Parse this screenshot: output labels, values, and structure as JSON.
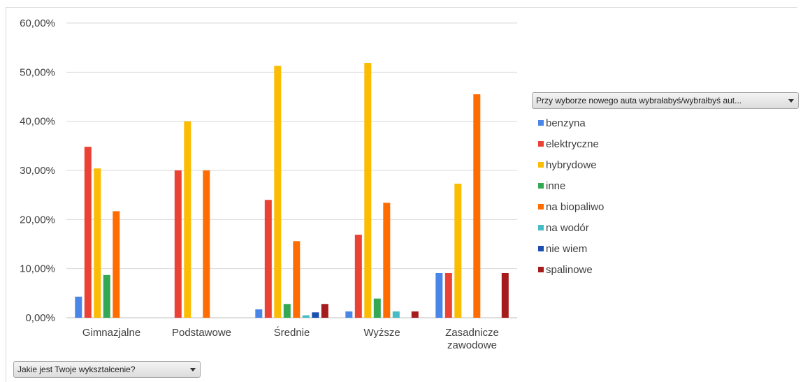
{
  "chart_data": {
    "type": "bar",
    "categories": [
      "Gimnazjalne",
      "Podstawowe",
      "Średnie",
      "Wyższe",
      "Zasadnicze zawodowe"
    ],
    "category_lines": [
      [
        "Gimnazjalne"
      ],
      [
        "Podstawowe"
      ],
      [
        "Średnie"
      ],
      [
        "Wyższe"
      ],
      [
        "Zasadnicze",
        "zawodowe"
      ]
    ],
    "ylim": [
      0,
      60
    ],
    "yticks": [
      0,
      10,
      20,
      30,
      40,
      50,
      60
    ],
    "ytick_labels": [
      "0,00%",
      "10,00%",
      "20,00%",
      "30,00%",
      "40,00%",
      "50,00%",
      "60,00%"
    ],
    "grid": true,
    "legend_position": "right",
    "series": [
      {
        "name": "benzyna",
        "color": "#4a86e8",
        "values": [
          4.3,
          0,
          1.7,
          1.3,
          9.1
        ]
      },
      {
        "name": "elektryczne",
        "color": "#ea4335",
        "values": [
          34.8,
          30.0,
          24.0,
          16.9,
          9.1
        ]
      },
      {
        "name": "hybrydowe",
        "color": "#fbbc04",
        "values": [
          30.4,
          40.0,
          51.3,
          51.9,
          27.3
        ]
      },
      {
        "name": "inne",
        "color": "#34a853",
        "values": [
          8.7,
          0,
          2.8,
          3.9,
          0
        ]
      },
      {
        "name": "na biopaliwo",
        "color": "#ff6d01",
        "values": [
          21.7,
          30.0,
          15.6,
          23.4,
          45.5
        ]
      },
      {
        "name": "na wodór",
        "color": "#46bdc6",
        "values": [
          0,
          0,
          0.5,
          1.3,
          0
        ]
      },
      {
        "name": "nie wiem",
        "color": "#1c4fb0",
        "values": [
          0,
          0,
          1.1,
          0,
          0
        ]
      },
      {
        "name": "spalinowe",
        "color": "#a61c1c",
        "values": [
          0,
          0,
          2.8,
          1.3,
          9.1
        ]
      }
    ]
  },
  "filters": {
    "legend_field": "Przy wyborze nowego auta wybrałabyś/wybrałbyś aut...",
    "x_field": "Jakie jest Twoje wykształcenie?"
  }
}
